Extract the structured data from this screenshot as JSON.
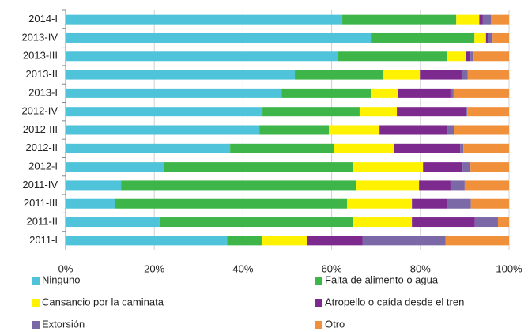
{
  "chart_data": {
    "type": "stacked_bar_horizontal",
    "categories": [
      "2014-I",
      "2013-IV",
      "2013-III",
      "2013-II",
      "2013-I",
      "2012-IV",
      "2012-III",
      "2012-II",
      "2012-I",
      "2011-IV",
      "2011-III",
      "2011-II",
      "2011-I"
    ],
    "series": [
      {
        "name": "Ninguno",
        "color": "#4fc3da",
        "values": [
          62.4,
          69,
          61.5,
          51.7,
          48.7,
          44.4,
          43.7,
          37.1,
          22.1,
          12.5,
          11.2,
          21.2,
          36.4
        ]
      },
      {
        "name": "Falta de alimento o agua",
        "color": "#3db549",
        "values": [
          25.7,
          23.2,
          24.6,
          20,
          20.3,
          21.9,
          15.7,
          23.5,
          42.8,
          53.1,
          52.3,
          43.7,
          7.8
        ]
      },
      {
        "name": "Cansancio por la caminata",
        "color": "#fff200",
        "values": [
          5.2,
          2.6,
          4.1,
          8.2,
          6,
          8.4,
          11.4,
          13.4,
          15.7,
          14.1,
          14.6,
          13.2,
          10.2
        ]
      },
      {
        "name": "Atropello o caída desde el tren",
        "color": "#7d2a8f",
        "values": [
          0.8,
          0.4,
          1.1,
          9.4,
          11.8,
          15.7,
          15.3,
          15,
          8.9,
          7.1,
          8,
          14.2,
          12.6
        ]
      },
      {
        "name": "Extorsión",
        "color": "#7b68a6",
        "values": [
          1.8,
          1.1,
          0.7,
          1.4,
          0.7,
          0.2,
          1.6,
          0.7,
          1.8,
          3.2,
          5.3,
          5.2,
          18.7
        ]
      },
      {
        "name": "Otro",
        "color": "#f0903a",
        "values": [
          4.1,
          3.7,
          8,
          9.3,
          12.5,
          9.4,
          12.3,
          10.3,
          8.7,
          10,
          8.6,
          2.5,
          14.3
        ]
      }
    ],
    "xlim": [
      0,
      100
    ],
    "xticks": [
      {
        "value": 0,
        "label": "0%"
      },
      {
        "value": 20,
        "label": "20%"
      },
      {
        "value": 40,
        "label": "40%"
      },
      {
        "value": 60,
        "label": "60%"
      },
      {
        "value": 80,
        "label": "80%"
      },
      {
        "value": 100,
        "label": "100%"
      }
    ],
    "grid": true,
    "legend": "bottom"
  }
}
